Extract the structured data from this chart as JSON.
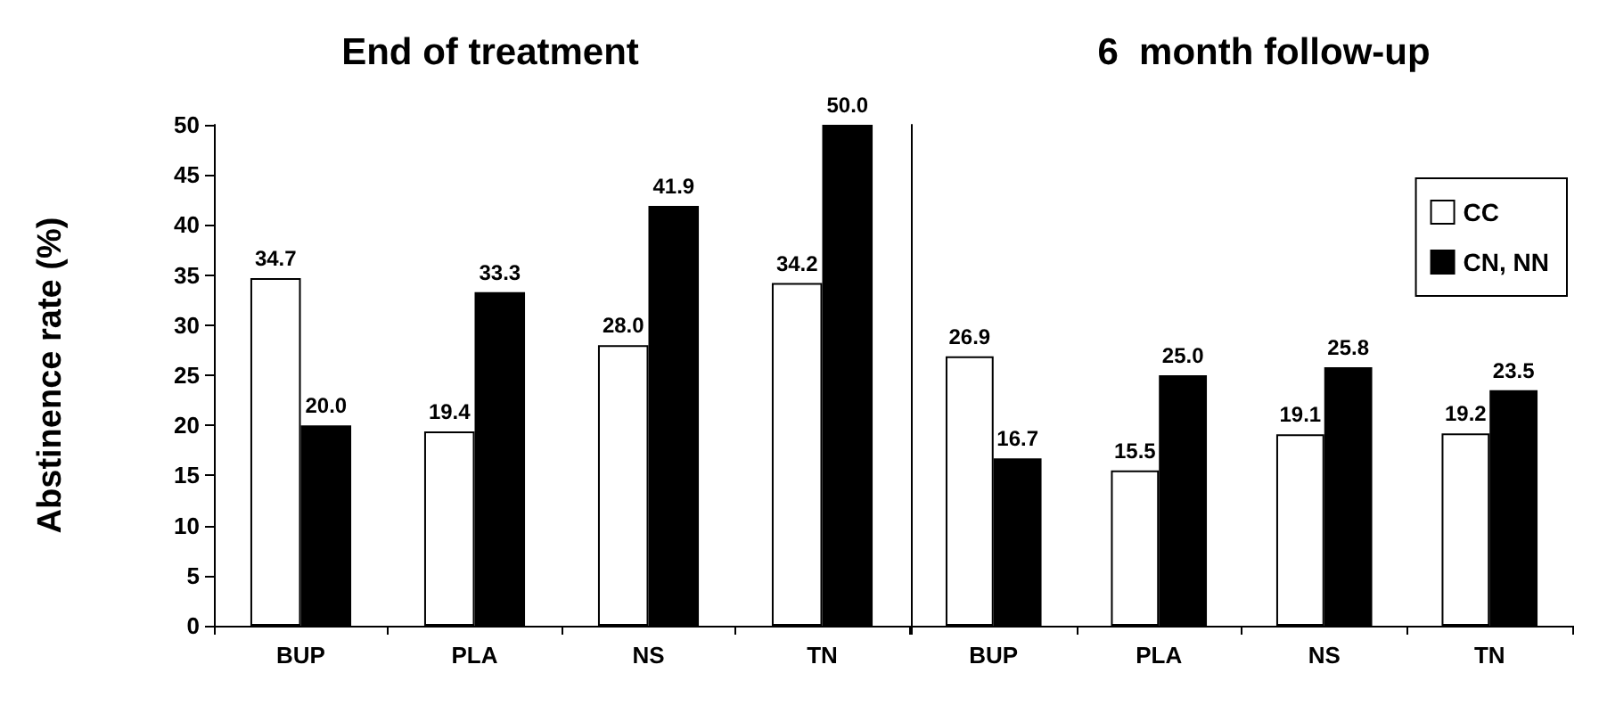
{
  "chart_data": [
    {
      "type": "bar",
      "title": "End of treatment",
      "ylabel": "Abstinence rate (%)",
      "categories": [
        "BUP",
        "PLA",
        "NS",
        "TN"
      ],
      "series": [
        {
          "color": "#ffffff",
          "values": [
            34.7,
            19.4,
            28.0,
            34.2
          ],
          "value_labels": [
            "34.7",
            "19.4",
            "28.0",
            "34.2"
          ]
        },
        {
          "color": "#000000",
          "values": [
            20.0,
            33.3,
            41.9,
            50.0
          ],
          "value_labels": [
            "20.0",
            "33.3",
            "41.9",
            "50.0"
          ]
        }
      ],
      "ylim": [
        0,
        50
      ],
      "yticks": [
        0,
        5,
        10,
        15,
        20,
        25,
        30,
        35,
        40,
        45,
        50
      ]
    },
    {
      "type": "bar",
      "title": "6  month follow-up",
      "categories": [
        "BUP",
        "PLA",
        "NS",
        "TN"
      ],
      "series": [
        {
          "name": "CC",
          "color": "#ffffff",
          "values": [
            26.9,
            15.5,
            19.1,
            19.2
          ],
          "value_labels": [
            "26.9",
            "15.5",
            "19.1",
            "19.2"
          ]
        },
        {
          "name": "CN, NN",
          "color": "#000000",
          "values": [
            16.7,
            25.0,
            25.8,
            23.5
          ],
          "value_labels": [
            "16.7",
            "25.0",
            "25.8",
            "23.5"
          ]
        }
      ],
      "ylim": [
        0,
        50
      ],
      "yticks": [
        0,
        5,
        10,
        15,
        20,
        25,
        30,
        35,
        40,
        45,
        50
      ],
      "tick_labels": "x",
      "legend": "top right"
    }
  ]
}
